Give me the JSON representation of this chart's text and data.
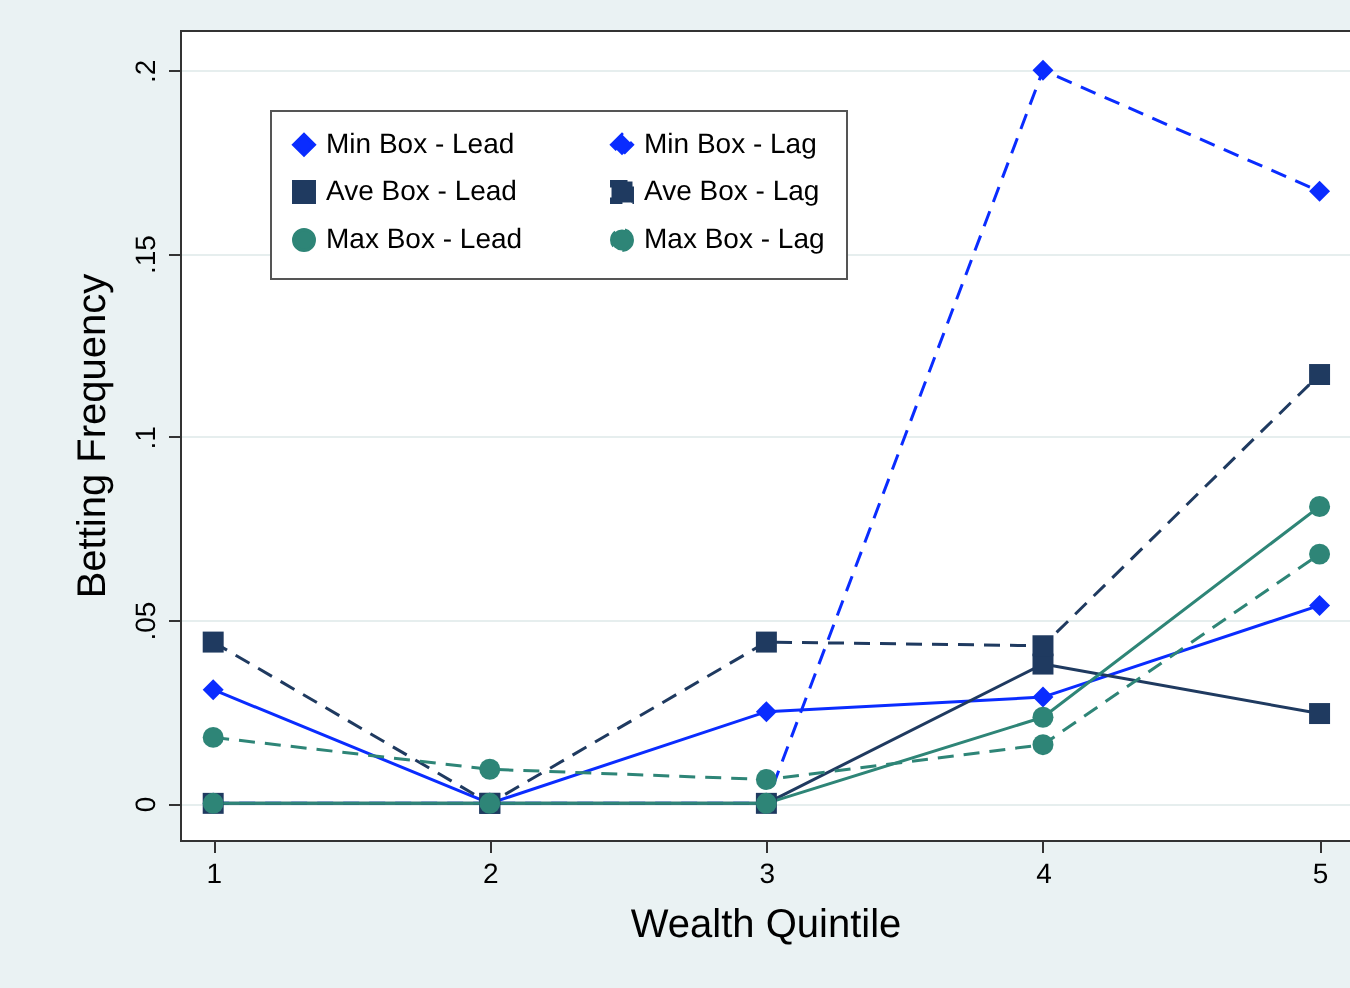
{
  "chart_data": {
    "type": "line",
    "xlabel": "Wealth Quintile",
    "ylabel": "Betting Frequency",
    "x": [
      1,
      2,
      3,
      4,
      5
    ],
    "xlim": [
      0.88,
      5.11
    ],
    "ylim": [
      -0.01,
      0.211
    ],
    "xticks": [
      1,
      2,
      3,
      4,
      5
    ],
    "yticks": [
      {
        "value": 0,
        "label": "0"
      },
      {
        "value": 0.05,
        "label": ".05"
      },
      {
        "value": 0.1,
        "label": ".1"
      },
      {
        "value": 0.15,
        "label": ".15"
      },
      {
        "value": 0.2,
        "label": ".2"
      }
    ],
    "grid": "y",
    "legend": "top",
    "series": [
      {
        "name": "Min Box - Lead",
        "color": "#0a2cff",
        "marker": "diamond",
        "line_style": "solid",
        "values": [
          0.031,
          0,
          0.025,
          0.029,
          0.054
        ]
      },
      {
        "name": "Min Box - Lag",
        "color": "#0a2cff",
        "marker": "diamond",
        "line_style": "dashed",
        "values": [
          0,
          0,
          0,
          0.2,
          0.167
        ]
      },
      {
        "name": "Ave Box - Lead",
        "color": "#1f3a60",
        "marker": "square",
        "line_style": "solid",
        "values": [
          0,
          0,
          0,
          0.038,
          0.0245
        ]
      },
      {
        "name": "Ave Box - Lag",
        "color": "#1f3a60",
        "marker": "square",
        "line_style": "dashed",
        "values": [
          0.044,
          0,
          0.044,
          0.043,
          0.117
        ]
      },
      {
        "name": "Max Box - Lead",
        "color": "#2e8577",
        "marker": "circle",
        "line_style": "solid",
        "values": [
          0,
          0,
          0,
          0.0235,
          0.081
        ]
      },
      {
        "name": "Max Box - Lag",
        "color": "#2e8577",
        "marker": "circle",
        "line_style": "dashed",
        "values": [
          0.018,
          0.0093,
          0.0065,
          0.016,
          0.068
        ]
      }
    ]
  }
}
